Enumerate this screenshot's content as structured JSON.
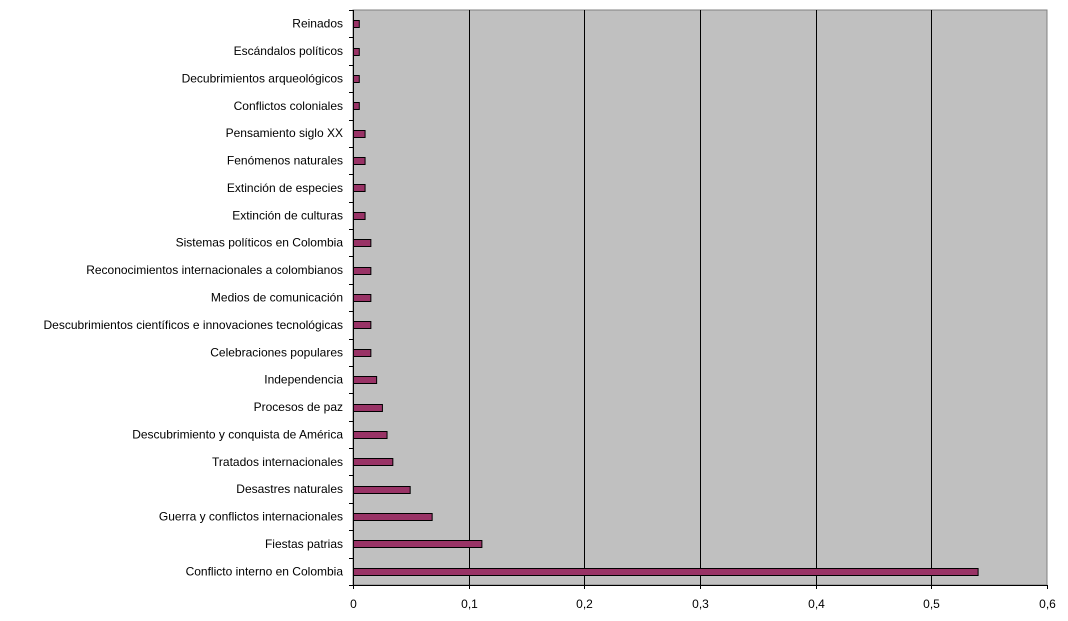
{
  "chart_data": {
    "type": "bar",
    "orientation": "horizontal",
    "categories": [
      "Reinados",
      "Escándalos políticos",
      "Decubrimientos arqueológicos",
      "Conflictos coloniales",
      "Pensamiento siglo XX",
      "Fenómenos naturales",
      "Extinción de especies",
      "Extinción de culturas",
      "Sistemas políticos en Colombia",
      "Reconocimientos internacionales a colombianos",
      "Medios de comunicación",
      "Descubrimientos científicos e innovaciones tecnológicas",
      "Celebraciones populares",
      "Independencia",
      "Procesos de paz",
      "Descubrimiento y conquista de América",
      "Tratados internacionales",
      "Desastres naturales",
      "Guerra y conflictos internacionales",
      "Fiestas patrias",
      "Conflicto interno en Colombia"
    ],
    "values": [
      0.005,
      0.005,
      0.005,
      0.005,
      0.01,
      0.01,
      0.01,
      0.01,
      0.015,
      0.015,
      0.015,
      0.015,
      0.015,
      0.02,
      0.025,
      0.029,
      0.034,
      0.049,
      0.068,
      0.111,
      0.54
    ],
    "xlim": [
      0,
      0.6
    ],
    "xticks": [
      "0",
      "0,1",
      "0,2",
      "0,3",
      "0,4",
      "0,5",
      "0,6"
    ],
    "grid": "vertical",
    "legend": "none",
    "colors": {
      "plot_background": "#c0c0c0",
      "bar_fill": "#993366",
      "bar_stroke": "#000000",
      "grid": "#000000"
    }
  }
}
